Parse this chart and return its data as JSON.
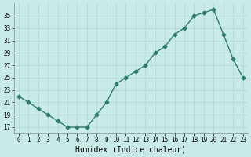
{
  "x": [
    0,
    1,
    2,
    3,
    4,
    5,
    6,
    7,
    8,
    9,
    10,
    11,
    12,
    13,
    14,
    15,
    16,
    17,
    18,
    19,
    20,
    21,
    22,
    23
  ],
  "y": [
    22,
    21,
    20,
    19,
    18,
    17,
    17,
    17,
    19,
    21,
    24,
    25,
    26,
    27,
    29,
    30,
    32,
    33,
    35,
    35.5,
    36,
    32,
    28,
    25
  ],
  "line_color": "#2e7d6e",
  "marker": "D",
  "marker_size": 2.5,
  "bg_color": "#c8ebe8",
  "grid_color": "#b0d8d4",
  "xlabel": "Humidex (Indice chaleur)",
  "ylim": [
    16,
    37
  ],
  "xlim": [
    -0.5,
    23.5
  ],
  "yticks": [
    17,
    19,
    21,
    23,
    25,
    27,
    29,
    31,
    33,
    35
  ],
  "xticks": [
    0,
    1,
    2,
    3,
    4,
    5,
    6,
    7,
    8,
    9,
    10,
    11,
    12,
    13,
    14,
    15,
    16,
    17,
    18,
    19,
    20,
    21,
    22,
    23
  ],
  "xlabel_fontsize": 7,
  "tick_fontsize": 5.5,
  "line_width": 1.0
}
